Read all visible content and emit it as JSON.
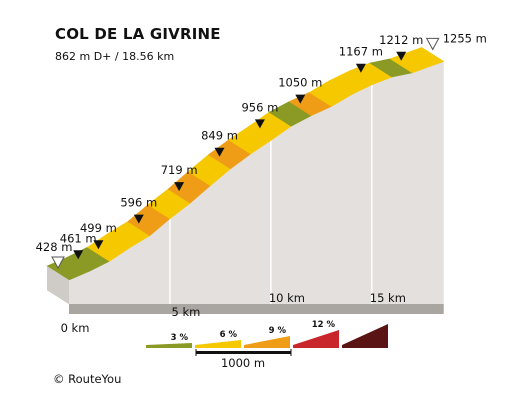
{
  "title": "COL DE LA GIVRINE",
  "subtitle": "862 m D+ / 18.56 km",
  "credit": "RouteYou",
  "credit_symbol": "©",
  "colors": {
    "grade_3": "#8a9a25",
    "grade_5": "#f5c800",
    "grade_7": "#ef9d17",
    "grade_10": "#c8262b",
    "grade_12": "#5a1414",
    "side": "#e3e0dd",
    "base": "#a9a5a1"
  },
  "chart_data": {
    "type": "area",
    "title": "COL DE LA GIVRINE",
    "subtitle": "862 m D+ / 18.56 km",
    "x_unit": "km",
    "y_unit": "m",
    "xlim": [
      0,
      18.56
    ],
    "profile": [
      {
        "km": 0.0,
        "elev": 428
      },
      {
        "km": 1.0,
        "elev": 461
      },
      {
        "km": 2.0,
        "elev": 499
      },
      {
        "km": 3.0,
        "elev": 550
      },
      {
        "km": 4.0,
        "elev": 596
      },
      {
        "km": 5.0,
        "elev": 660
      },
      {
        "km": 6.0,
        "elev": 719
      },
      {
        "km": 7.0,
        "elev": 785
      },
      {
        "km": 8.0,
        "elev": 849
      },
      {
        "km": 9.0,
        "elev": 905
      },
      {
        "km": 10.0,
        "elev": 956
      },
      {
        "km": 11.0,
        "elev": 1010
      },
      {
        "km": 12.0,
        "elev": 1050
      },
      {
        "km": 13.0,
        "elev": 1085
      },
      {
        "km": 14.0,
        "elev": 1130
      },
      {
        "km": 15.0,
        "elev": 1167
      },
      {
        "km": 16.0,
        "elev": 1196
      },
      {
        "km": 17.0,
        "elev": 1212
      },
      {
        "km": 18.56,
        "elev": 1255
      }
    ],
    "segment_grades": [
      "grade_3",
      "grade_3",
      "grade_5",
      "grade_5",
      "grade_7",
      "grade_5",
      "grade_7",
      "grade_5",
      "grade_7",
      "grade_5",
      "grade_5",
      "grade_3",
      "grade_7",
      "grade_5",
      "grade_5",
      "grade_5",
      "grade_3",
      "grade_5"
    ],
    "elevation_labels": [
      {
        "km": 0.0,
        "label": "428 m",
        "marker": "start"
      },
      {
        "km": 1.0,
        "label": "461 m",
        "marker": "point"
      },
      {
        "km": 2.0,
        "label": "499 m",
        "marker": "point"
      },
      {
        "km": 4.0,
        "label": "596 m",
        "marker": "point"
      },
      {
        "km": 6.0,
        "label": "719 m",
        "marker": "point"
      },
      {
        "km": 8.0,
        "label": "849 m",
        "marker": "point"
      },
      {
        "km": 10.0,
        "label": "956 m",
        "marker": "point"
      },
      {
        "km": 12.0,
        "label": "1050 m",
        "marker": "point"
      },
      {
        "km": 15.0,
        "label": "1167 m",
        "marker": "point"
      },
      {
        "km": 17.0,
        "label": "1212 m",
        "marker": "point"
      },
      {
        "km": 18.56,
        "label": "1255 m",
        "marker": "end"
      }
    ],
    "distance_ticks": [
      {
        "km": 0,
        "label": "0 km"
      },
      {
        "km": 5,
        "label": "5 km"
      },
      {
        "km": 10,
        "label": "10 km"
      },
      {
        "km": 15,
        "label": "15 km"
      }
    ],
    "legend": [
      {
        "label": "3 %",
        "grade": "grade_3"
      },
      {
        "label": "6 %",
        "grade": "grade_5"
      },
      {
        "label": "9 %",
        "grade": "grade_7"
      },
      {
        "label": "12 %",
        "grade": "grade_10"
      },
      {
        "label": "",
        "grade": "grade_12"
      }
    ],
    "scale_label": "1000 m"
  }
}
